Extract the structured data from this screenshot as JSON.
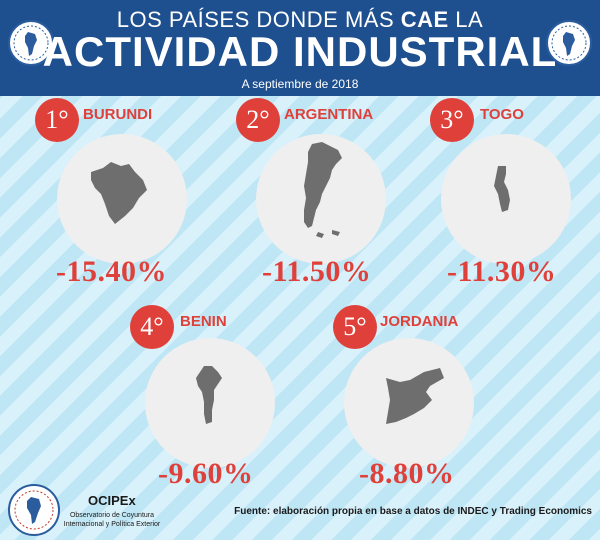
{
  "header": {
    "title_line1_prefix": "LOS PAÍSES DONDE MÁS ",
    "title_line1_bold": "CAE",
    "title_line1_suffix": " LA",
    "title_line2": "ACTIVIDAD INDUSTRIAL",
    "date": "A septiembre de 2018"
  },
  "countries": [
    {
      "rank": "1°",
      "name": "BURUNDI",
      "value": "-15.40%",
      "map_icon": "burundi-map-icon"
    },
    {
      "rank": "2°",
      "name": "ARGENTINA",
      "value": "-11.50%",
      "map_icon": "argentina-map-icon"
    },
    {
      "rank": "3°",
      "name": "TOGO",
      "value": "-11.30%",
      "map_icon": "togo-map-icon"
    },
    {
      "rank": "4°",
      "name": "BENIN",
      "value": "-9.60%",
      "map_icon": "benin-map-icon"
    },
    {
      "rank": "5°",
      "name": "JORDANIA",
      "value": "-8.80%",
      "map_icon": "jordan-map-icon"
    }
  ],
  "footer": {
    "org_name": "OCIPEx",
    "org_desc": "Observatorio de Coyuntura Internacional y Política Exterior",
    "source": "Fuente: elaboración propia en base a datos de INDEC y Trading Economics"
  },
  "colors": {
    "header_bg": "#1e4f8f",
    "accent_red": "#e0403a",
    "stripe_light": "#d8f1fa",
    "stripe_dark": "#bfe6f5",
    "map_gray": "#6e6e6e"
  }
}
